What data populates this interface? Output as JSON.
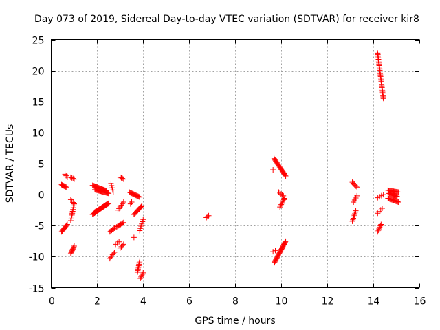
{
  "chart_data": {
    "type": "scatter",
    "title": "Day 073 of 2019, Sidereal Day-to-day VTEC variation (SDTVAR) for receiver kir8",
    "xlabel": "GPS time / hours",
    "ylabel": "SDTVAR / TECUs",
    "xlim": [
      0,
      16
    ],
    "ylim": [
      -15,
      25
    ],
    "xticks": [
      0,
      2,
      4,
      6,
      8,
      10,
      12,
      14,
      16
    ],
    "yticks": [
      -15,
      -10,
      -5,
      0,
      5,
      10,
      15,
      20,
      25
    ],
    "grid": true,
    "marker": "plus",
    "color": "#ff0000",
    "segments": [
      {
        "x0": 0.45,
        "y0": 1.6,
        "x1": 0.65,
        "y1": 1.2,
        "n": 8
      },
      {
        "x0": 0.6,
        "y0": 3.3,
        "x1": 0.7,
        "y1": 2.8,
        "n": 3
      },
      {
        "x0": 0.45,
        "y0": -6.0,
        "x1": 0.7,
        "y1": -4.8,
        "n": 10
      },
      {
        "x0": 0.85,
        "y0": 2.8,
        "x1": 1.0,
        "y1": 2.5,
        "n": 4
      },
      {
        "x0": 0.85,
        "y0": -0.8,
        "x1": 1.0,
        "y1": -1.5,
        "n": 4
      },
      {
        "x0": 0.85,
        "y0": -4.2,
        "x1": 1.0,
        "y1": -1.5,
        "n": 10
      },
      {
        "x0": 0.85,
        "y0": -9.5,
        "x1": 1.0,
        "y1": -8.3,
        "n": 8
      },
      {
        "x0": 1.8,
        "y0": 1.5,
        "x1": 2.4,
        "y1": 0.6,
        "n": 22
      },
      {
        "x0": 1.9,
        "y0": 0.8,
        "x1": 2.5,
        "y1": 0.2,
        "n": 20
      },
      {
        "x0": 1.8,
        "y0": -3.2,
        "x1": 2.4,
        "y1": -1.6,
        "n": 22
      },
      {
        "x0": 1.9,
        "y0": -2.8,
        "x1": 2.5,
        "y1": -1.4,
        "n": 22
      },
      {
        "x0": 2.6,
        "y0": 1.8,
        "x1": 2.7,
        "y1": 0.4,
        "n": 5
      },
      {
        "x0": 3.0,
        "y0": 2.8,
        "x1": 3.15,
        "y1": 2.5,
        "n": 4
      },
      {
        "x0": 2.55,
        "y0": -6.0,
        "x1": 2.75,
        "y1": -5.4,
        "n": 6
      },
      {
        "x0": 2.85,
        "y0": -5.2,
        "x1": 3.15,
        "y1": -4.5,
        "n": 8
      },
      {
        "x0": 2.9,
        "y0": -2.5,
        "x1": 3.15,
        "y1": -1.2,
        "n": 6
      },
      {
        "x0": 2.8,
        "y0": -8.0,
        "x1": 2.95,
        "y1": -7.6,
        "n": 3
      },
      {
        "x0": 3.0,
        "y0": -8.6,
        "x1": 3.15,
        "y1": -8.0,
        "n": 4
      },
      {
        "x0": 2.55,
        "y0": -10.3,
        "x1": 2.75,
        "y1": -9.3,
        "n": 6
      },
      {
        "x0": 3.4,
        "y0": 0.4,
        "x1": 3.85,
        "y1": -0.4,
        "n": 16
      },
      {
        "x0": 3.45,
        "y0": -1.5,
        "x1": 3.5,
        "y1": -1.2,
        "n": 2
      },
      {
        "x0": 3.6,
        "y0": -3.2,
        "x1": 3.95,
        "y1": -1.8,
        "n": 12
      },
      {
        "x0": 3.85,
        "y0": -5.8,
        "x1": 4.0,
        "y1": -4.0,
        "n": 6
      },
      {
        "x0": 3.6,
        "y0": -6.9,
        "x1": 3.65,
        "y1": -6.7,
        "n": 1
      },
      {
        "x0": 3.75,
        "y0": -12.5,
        "x1": 3.85,
        "y1": -10.7,
        "n": 8
      },
      {
        "x0": 3.88,
        "y0": -13.5,
        "x1": 4.0,
        "y1": -12.6,
        "n": 5
      },
      {
        "x0": 6.75,
        "y0": -3.7,
        "x1": 6.85,
        "y1": -3.4,
        "n": 3
      },
      {
        "x0": 9.7,
        "y0": 5.8,
        "x1": 10.2,
        "y1": 3.0,
        "n": 22
      },
      {
        "x0": 9.65,
        "y0": 4.0,
        "x1": 9.75,
        "y1": 4.0,
        "n": 1
      },
      {
        "x0": 9.9,
        "y0": 0.4,
        "x1": 10.1,
        "y1": -0.2,
        "n": 5
      },
      {
        "x0": 9.95,
        "y0": -2.0,
        "x1": 10.15,
        "y1": -0.6,
        "n": 8
      },
      {
        "x0": 9.7,
        "y0": -11.0,
        "x1": 10.2,
        "y1": -7.5,
        "n": 28
      },
      {
        "x0": 9.65,
        "y0": -9.2,
        "x1": 9.75,
        "y1": -9.0,
        "n": 2
      },
      {
        "x0": 13.1,
        "y0": 2.0,
        "x1": 13.3,
        "y1": 1.2,
        "n": 6
      },
      {
        "x0": 13.15,
        "y0": -1.2,
        "x1": 13.3,
        "y1": -0.2,
        "n": 4
      },
      {
        "x0": 13.1,
        "y0": -4.3,
        "x1": 13.25,
        "y1": -2.6,
        "n": 8
      },
      {
        "x0": 14.2,
        "y0": 22.8,
        "x1": 14.45,
        "y1": 15.5,
        "n": 30
      },
      {
        "x0": 14.2,
        "y0": -0.5,
        "x1": 14.45,
        "y1": 0.0,
        "n": 4
      },
      {
        "x0": 14.2,
        "y0": -6.0,
        "x1": 14.35,
        "y1": -4.8,
        "n": 6
      },
      {
        "x0": 14.2,
        "y0": -3.0,
        "x1": 14.4,
        "y1": -2.2,
        "n": 4
      },
      {
        "x0": 14.65,
        "y0": 0.7,
        "x1": 15.1,
        "y1": 0.4,
        "n": 14
      },
      {
        "x0": 14.65,
        "y0": -0.6,
        "x1": 15.1,
        "y1": -1.2,
        "n": 14
      },
      {
        "x0": 14.7,
        "y0": 0.2,
        "x1": 15.05,
        "y1": -0.3,
        "n": 12
      }
    ]
  }
}
